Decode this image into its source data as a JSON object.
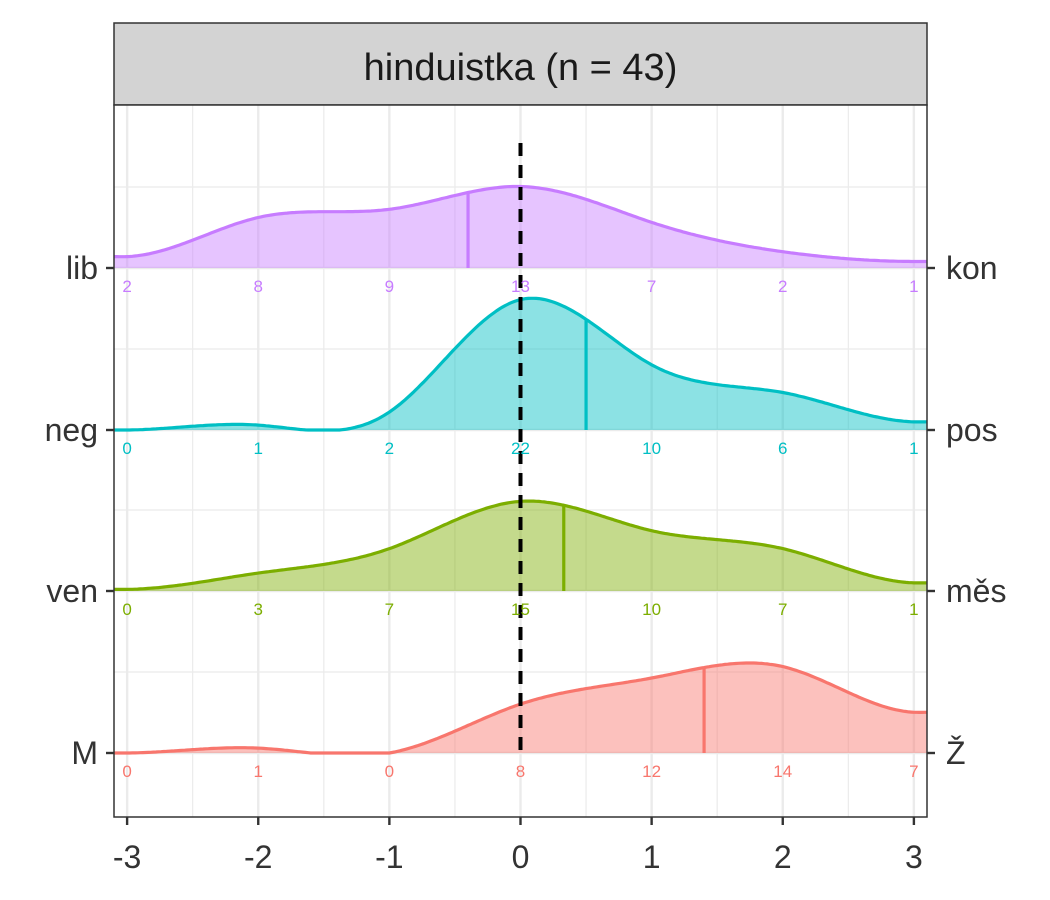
{
  "chart_data": {
    "type": "ridgeline",
    "facet_title": "hinduistka (n = 43)",
    "x_ticks": [
      "-3",
      "-2",
      "-1",
      "0",
      "1",
      "2",
      "3"
    ],
    "xlim": [
      -3.1,
      3.1
    ],
    "reference_line_x": 0,
    "grid": true,
    "rows": [
      {
        "left_label": "lib",
        "right_label": "kon",
        "color": "#C77CFF",
        "mean": -0.4,
        "x": [
          -3,
          -2,
          -1,
          0,
          1,
          2,
          3
        ],
        "counts": [
          "2",
          "8",
          "9",
          "13",
          "7",
          "2",
          "1"
        ],
        "density": [
          0.07,
          0.31,
          0.36,
          0.5,
          0.28,
          0.1,
          0.04
        ]
      },
      {
        "left_label": "neg",
        "right_label": "pos",
        "color": "#00BFC4",
        "mean": 0.5,
        "x": [
          -3,
          -2,
          -1,
          0,
          1,
          2,
          3
        ],
        "counts": [
          "0",
          "1",
          "2",
          "22",
          "10",
          "6",
          "1"
        ],
        "density": [
          0.0,
          0.03,
          0.11,
          0.8,
          0.4,
          0.23,
          0.05
        ]
      },
      {
        "left_label": "ven",
        "right_label": "měs",
        "color": "#7CAE00",
        "mean": 0.33,
        "x": [
          -3,
          -2,
          -1,
          0,
          1,
          2,
          3
        ],
        "counts": [
          "0",
          "3",
          "7",
          "15",
          "10",
          "7",
          "1"
        ],
        "density": [
          0.01,
          0.11,
          0.26,
          0.55,
          0.37,
          0.26,
          0.05
        ]
      },
      {
        "left_label": "M",
        "right_label": "Ž",
        "color": "#F8766D",
        "mean": 1.4,
        "x": [
          -3,
          -2,
          -1,
          0,
          1,
          2,
          3
        ],
        "counts": [
          "0",
          "1",
          "0",
          "8",
          "12",
          "14",
          "7"
        ],
        "density": [
          0.0,
          0.03,
          0.0,
          0.3,
          0.46,
          0.53,
          0.25
        ]
      }
    ]
  }
}
